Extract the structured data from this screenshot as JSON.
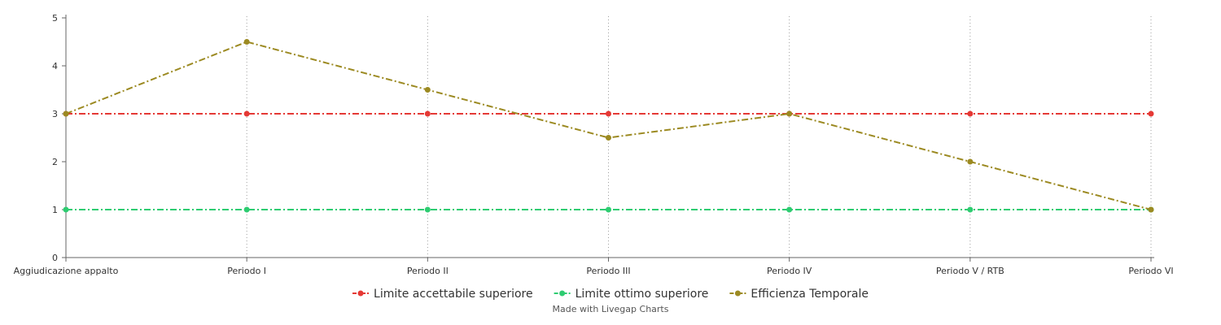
{
  "chart_data": {
    "type": "line",
    "title": "",
    "xlabel": "",
    "ylabel": "",
    "categories": [
      "Aggiudicazione appalto",
      "Periodo I",
      "Periodo II",
      "Periodo III",
      "Periodo IV",
      "Periodo V / RTB",
      "Periodo VI"
    ],
    "ylim": [
      0,
      5
    ],
    "yticks": [
      "0",
      "1",
      "2",
      "3",
      "4",
      "5"
    ],
    "grid": {
      "vertical": true,
      "horizontal": false
    },
    "legend_position": "bottom",
    "series": [
      {
        "name": "Limite accettabile superiore",
        "color": "#e53935",
        "values": [
          3,
          3,
          3,
          3,
          3,
          3,
          3
        ]
      },
      {
        "name": "Limite ottimo superiore",
        "color": "#2ecc71",
        "values": [
          1,
          1,
          1,
          1,
          1,
          1,
          1
        ]
      },
      {
        "name": "Efficienza Temporale",
        "color": "#9c8a22",
        "values": [
          3,
          4.5,
          3.5,
          2.5,
          3,
          2,
          1
        ]
      }
    ]
  },
  "credit": "Made with Livegap Charts"
}
